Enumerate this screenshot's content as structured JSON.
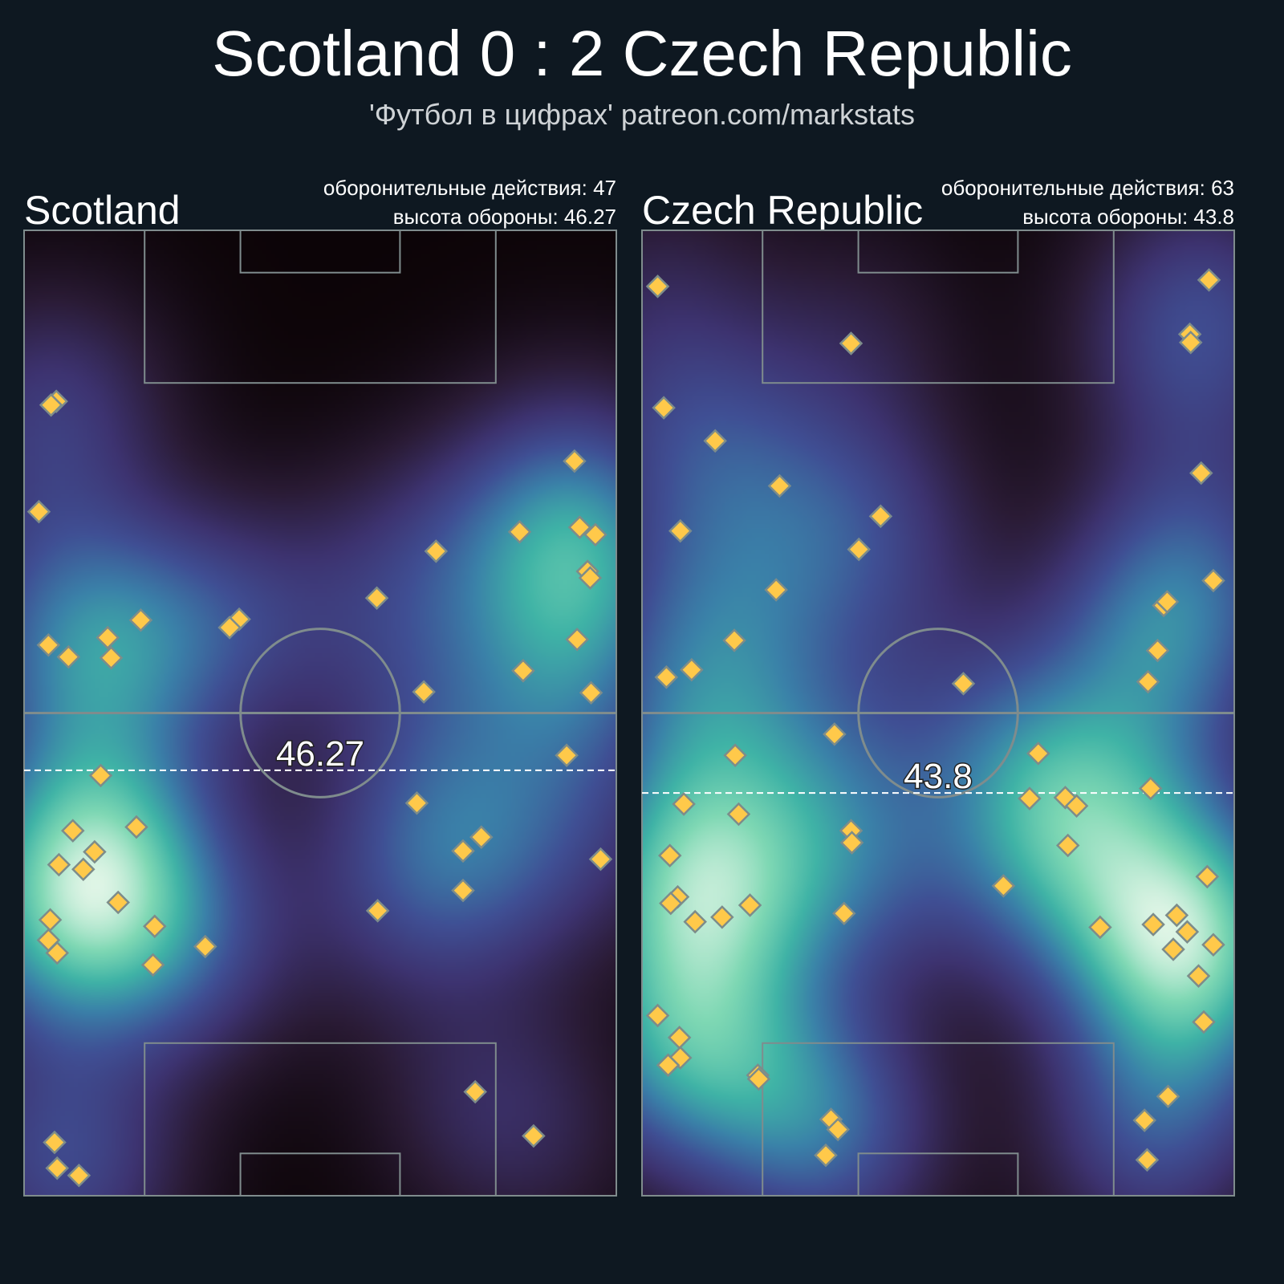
{
  "title": "Scotland 0 : 2 Czech Republic",
  "subtitle": "'Футбол в цифрах' patreon.com/markstats",
  "colors": {
    "background": "#0e1821",
    "marker_fill": "#ffc94a",
    "marker_edge": "#7d8c8a",
    "pitch_lines": "#7f8c8d",
    "defense_line": "#ffffff",
    "colormap": [
      "#0c0407",
      "#2a1b35",
      "#3d3370",
      "#3f4f94",
      "#3a7fa8",
      "#3fb3a6",
      "#7fd8b4",
      "#dff5e6"
    ]
  },
  "chart_data": [
    {
      "type": "scatter+heatmap",
      "team": "Scotland",
      "stats_line1": "оборонительные действия: 47",
      "stats_line2": "высота обороны: 46.27",
      "defensive_actions": 47,
      "defense_height": 46.27,
      "defense_height_label": "46.27",
      "pitch": {
        "length": 105,
        "width": 68
      },
      "points": [
        [
          3.7,
          86.4
        ],
        [
          3.1,
          86.0
        ],
        [
          1.7,
          74.4
        ],
        [
          63.2,
          79.9
        ],
        [
          63.8,
          72.7
        ],
        [
          65.6,
          71.9
        ],
        [
          56.9,
          72.2
        ],
        [
          47.3,
          70.1
        ],
        [
          64.7,
          67.9
        ],
        [
          65.0,
          67.2
        ],
        [
          40.5,
          65.0
        ],
        [
          13.4,
          62.6
        ],
        [
          24.7,
          62.7
        ],
        [
          23.6,
          61.8
        ],
        [
          2.8,
          59.9
        ],
        [
          5.1,
          58.6
        ],
        [
          9.6,
          60.7
        ],
        [
          10.0,
          58.5
        ],
        [
          63.5,
          60.5
        ],
        [
          57.3,
          57.1
        ],
        [
          45.9,
          54.8
        ],
        [
          65.1,
          54.7
        ],
        [
          62.3,
          47.9
        ],
        [
          8.8,
          45.7
        ],
        [
          45.1,
          42.7
        ],
        [
          5.6,
          39.7
        ],
        [
          12.9,
          40.1
        ],
        [
          52.5,
          39.0
        ],
        [
          50.4,
          37.5
        ],
        [
          8.1,
          37.4
        ],
        [
          4.0,
          36.0
        ],
        [
          6.8,
          35.5
        ],
        [
          66.2,
          36.6
        ],
        [
          10.8,
          31.9
        ],
        [
          50.4,
          33.2
        ],
        [
          40.6,
          31.0
        ],
        [
          3.0,
          30.0
        ],
        [
          15.0,
          29.3
        ],
        [
          2.8,
          27.8
        ],
        [
          3.8,
          26.4
        ],
        [
          20.8,
          27.1
        ],
        [
          14.8,
          25.1
        ],
        [
          51.8,
          11.3
        ],
        [
          58.5,
          6.5
        ],
        [
          3.5,
          5.8
        ],
        [
          3.8,
          3.0
        ],
        [
          6.3,
          2.2
        ]
      ]
    },
    {
      "type": "scatter+heatmap",
      "team": "Czech Republic",
      "stats_line1": "оборонительные действия: 63",
      "stats_line2": "высота обороны: 43.8",
      "defensive_actions": 63,
      "defense_height": 43.8,
      "defense_height_label": "43.8",
      "pitch": {
        "length": 105,
        "width": 68
      },
      "points": [
        [
          1.8,
          98.9
        ],
        [
          65.1,
          99.6
        ],
        [
          24.0,
          92.7
        ],
        [
          62.9,
          93.7
        ],
        [
          63.0,
          92.8
        ],
        [
          2.5,
          85.7
        ],
        [
          8.4,
          82.1
        ],
        [
          64.2,
          78.6
        ],
        [
          15.8,
          77.2
        ],
        [
          27.4,
          73.9
        ],
        [
          4.4,
          72.3
        ],
        [
          24.9,
          70.3
        ],
        [
          65.6,
          66.9
        ],
        [
          15.4,
          65.9
        ],
        [
          59.9,
          64.2
        ],
        [
          60.3,
          64.6
        ],
        [
          10.6,
          60.4
        ],
        [
          59.2,
          59.3
        ],
        [
          2.8,
          56.4
        ],
        [
          5.7,
          57.2
        ],
        [
          58.1,
          55.9
        ],
        [
          36.9,
          55.7
        ],
        [
          22.1,
          50.2
        ],
        [
          10.7,
          47.9
        ],
        [
          45.5,
          48.1
        ],
        [
          58.4,
          44.3
        ],
        [
          44.5,
          43.2
        ],
        [
          48.6,
          43.3
        ],
        [
          49.9,
          42.4
        ],
        [
          4.8,
          42.6
        ],
        [
          11.1,
          41.5
        ],
        [
          24.0,
          39.7
        ],
        [
          24.1,
          38.4
        ],
        [
          48.9,
          38.1
        ],
        [
          3.2,
          37.0
        ],
        [
          64.9,
          34.7
        ],
        [
          41.5,
          33.7
        ],
        [
          4.1,
          32.5
        ],
        [
          3.3,
          31.8
        ],
        [
          12.4,
          31.6
        ],
        [
          6.1,
          29.8
        ],
        [
          9.2,
          30.3
        ],
        [
          23.2,
          30.7
        ],
        [
          61.4,
          30.5
        ],
        [
          58.7,
          29.5
        ],
        [
          62.6,
          28.7
        ],
        [
          52.6,
          29.2
        ],
        [
          61.0,
          26.8
        ],
        [
          65.6,
          27.3
        ],
        [
          63.9,
          23.9
        ],
        [
          1.8,
          19.6
        ],
        [
          64.5,
          18.9
        ],
        [
          4.3,
          17.2
        ],
        [
          4.4,
          15.0
        ],
        [
          3.0,
          14.2
        ],
        [
          13.3,
          13.1
        ],
        [
          13.4,
          12.7
        ],
        [
          60.4,
          10.8
        ],
        [
          21.7,
          8.3
        ],
        [
          57.7,
          8.2
        ],
        [
          22.5,
          7.2
        ],
        [
          21.1,
          4.4
        ],
        [
          58.0,
          3.9
        ]
      ]
    }
  ]
}
